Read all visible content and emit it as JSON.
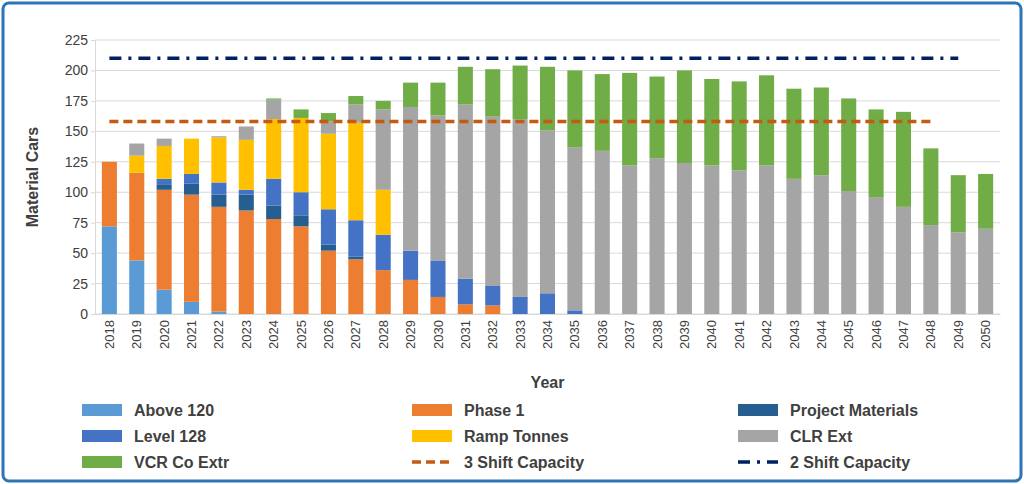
{
  "chart_data": {
    "type": "bar",
    "stacked": true,
    "grid": true,
    "legend": "bottom",
    "x_label": "Year",
    "y_label": "Material Cars",
    "categories": [
      "2018",
      "2019",
      "2020",
      "2021",
      "2022",
      "2023",
      "2024",
      "2025",
      "2026",
      "2027",
      "2028",
      "2029",
      "2030",
      "2031",
      "2032",
      "2033",
      "2034",
      "2035",
      "2036",
      "2037",
      "2038",
      "2039",
      "2040",
      "2041",
      "2042",
      "2043",
      "2044",
      "2045",
      "2046",
      "2047",
      "2048",
      "2049",
      "2050"
    ],
    "ylim": [
      0,
      225
    ],
    "yticks": [
      0,
      25,
      50,
      75,
      100,
      125,
      150,
      175,
      200,
      225
    ],
    "series": [
      {
        "name": "Above 120",
        "type": "bar",
        "color": "#5b9bd5",
        "values": [
          72,
          44,
          20,
          10,
          2,
          0,
          0,
          0,
          0,
          0,
          0,
          0,
          0,
          0,
          0,
          0,
          0,
          0,
          0,
          0,
          0,
          0,
          0,
          0,
          0,
          0,
          0,
          0,
          0,
          0,
          0,
          0,
          0
        ]
      },
      {
        "name": "Phase 1",
        "type": "bar",
        "color": "#ed7d31",
        "values": [
          53,
          72,
          82,
          88,
          86,
          85,
          78,
          72,
          52,
          45,
          36,
          28,
          14,
          8,
          7,
          0,
          0,
          0,
          0,
          0,
          0,
          0,
          0,
          0,
          0,
          0,
          0,
          0,
          0,
          0,
          0,
          0,
          0
        ]
      },
      {
        "name": "Project Materials",
        "type": "bar",
        "color": "#255e91",
        "values": [
          0,
          0,
          4,
          9,
          10,
          13,
          11,
          9,
          5,
          2,
          0,
          0,
          0,
          0,
          0,
          0,
          0,
          0,
          0,
          0,
          0,
          0,
          0,
          0,
          0,
          0,
          0,
          0,
          0,
          0,
          0,
          0,
          0
        ]
      },
      {
        "name": "Level 128",
        "type": "bar",
        "color": "#4472c4",
        "values": [
          0,
          0,
          5,
          8,
          10,
          4,
          22,
          19,
          29,
          30,
          29,
          24,
          30,
          21,
          16,
          14,
          17,
          3,
          0,
          0,
          0,
          0,
          0,
          0,
          0,
          0,
          0,
          0,
          0,
          0,
          0,
          0,
          0
        ]
      },
      {
        "name": "Ramp Tonnes",
        "type": "bar",
        "color": "#ffc000",
        "values": [
          0,
          14,
          27,
          29,
          37,
          41,
          49,
          61,
          62,
          80,
          37,
          0,
          0,
          0,
          0,
          0,
          0,
          0,
          0,
          0,
          0,
          0,
          0,
          0,
          0,
          0,
          0,
          0,
          0,
          0,
          0,
          0,
          0
        ]
      },
      {
        "name": "CLR Ext",
        "type": "bar",
        "color": "#a5a5a5",
        "values": [
          0,
          10,
          6,
          0,
          1,
          11,
          16,
          0,
          10,
          15,
          66,
          118,
          119,
          143,
          139,
          146,
          134,
          134,
          134,
          122,
          128,
          124,
          122,
          118,
          122,
          111,
          114,
          101,
          96,
          88,
          73,
          67,
          70
        ]
      },
      {
        "name": "VCR Co Extr",
        "type": "bar",
        "color": "#70ad47",
        "values": [
          0,
          0,
          0,
          0,
          0,
          0,
          1,
          7,
          7,
          7,
          7,
          20,
          27,
          31,
          39,
          44,
          52,
          63,
          63,
          76,
          67,
          76,
          71,
          73,
          74,
          74,
          72,
          76,
          72,
          78,
          63,
          47,
          45
        ]
      },
      {
        "name": "3 Shift Capacity",
        "type": "line",
        "color": "#c55a11",
        "line_style": "dashed",
        "values": [
          158,
          158,
          158,
          158,
          158,
          158,
          158,
          158,
          158,
          158,
          158,
          158,
          158,
          158,
          158,
          158,
          158,
          158,
          158,
          158,
          158,
          158,
          158,
          158,
          158,
          158,
          158,
          158,
          158,
          158,
          158,
          null,
          null
        ]
      },
      {
        "name": "2 Shift Capacity",
        "type": "line",
        "color": "#002060",
        "line_style": "dashdot",
        "values": [
          210,
          210,
          210,
          210,
          210,
          210,
          210,
          210,
          210,
          210,
          210,
          210,
          210,
          210,
          210,
          210,
          210,
          210,
          210,
          210,
          210,
          210,
          210,
          210,
          210,
          210,
          210,
          210,
          210,
          210,
          210,
          210,
          null
        ]
      }
    ]
  }
}
